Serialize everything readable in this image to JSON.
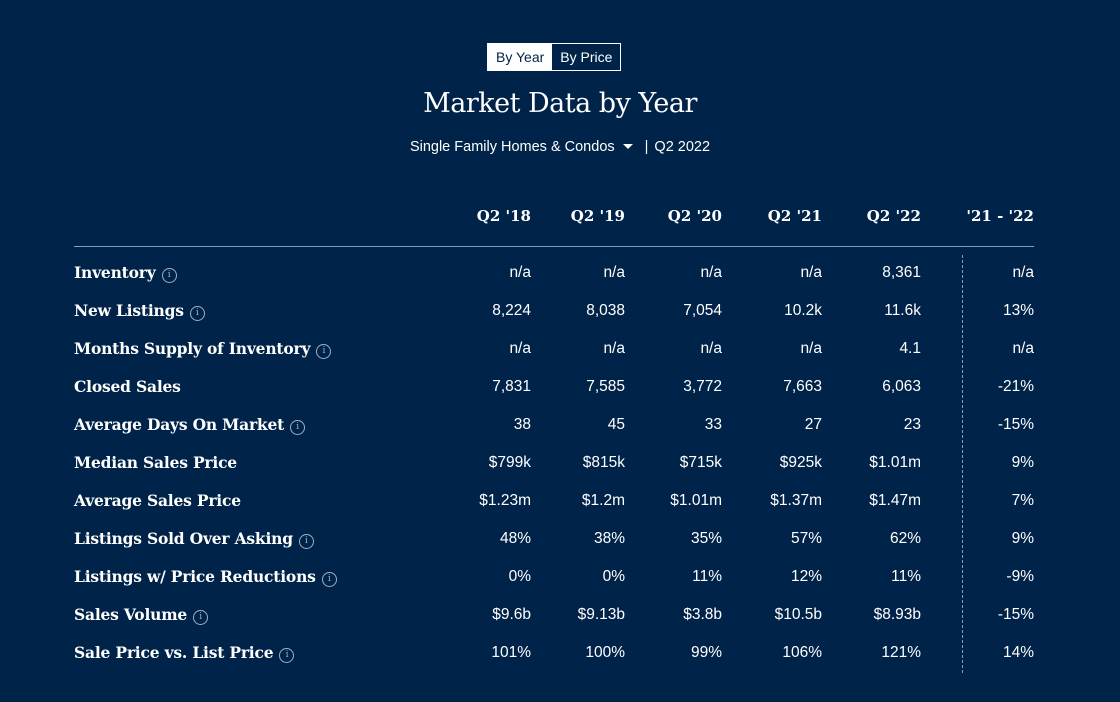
{
  "toggle": {
    "by_year": "By Year",
    "by_price": "By Price"
  },
  "title": "Market Data by Year",
  "filter": {
    "property_type": "Single Family Homes & Condos",
    "separator": "|",
    "period": "Q2 2022"
  },
  "table": {
    "headers": [
      "Q2 '18",
      "Q2 '19",
      "Q2 '20",
      "Q2 '21",
      "Q2 '22",
      "'21 - '22"
    ],
    "rows": [
      {
        "label": "Inventory",
        "info": true,
        "values": [
          "n/a",
          "n/a",
          "n/a",
          "n/a",
          "8,361",
          "n/a"
        ]
      },
      {
        "label": "New Listings",
        "info": true,
        "values": [
          "8,224",
          "8,038",
          "7,054",
          "10.2k",
          "11.6k",
          "13%"
        ]
      },
      {
        "label": "Months Supply of Inventory",
        "info": true,
        "values": [
          "n/a",
          "n/a",
          "n/a",
          "n/a",
          "4.1",
          "n/a"
        ]
      },
      {
        "label": "Closed Sales",
        "info": false,
        "values": [
          "7,831",
          "7,585",
          "3,772",
          "7,663",
          "6,063",
          "-21%"
        ]
      },
      {
        "label": "Average Days On Market",
        "info": true,
        "values": [
          "38",
          "45",
          "33",
          "27",
          "23",
          "-15%"
        ]
      },
      {
        "label": "Median Sales Price",
        "info": false,
        "values": [
          "$799k",
          "$815k",
          "$715k",
          "$925k",
          "$1.01m",
          "9%"
        ]
      },
      {
        "label": "Average Sales Price",
        "info": false,
        "values": [
          "$1.23m",
          "$1.2m",
          "$1.01m",
          "$1.37m",
          "$1.47m",
          "7%"
        ]
      },
      {
        "label": "Listings Sold Over Asking",
        "info": true,
        "values": [
          "48%",
          "38%",
          "35%",
          "57%",
          "62%",
          "9%"
        ]
      },
      {
        "label": "Listings w/ Price Reductions",
        "info": true,
        "values": [
          "0%",
          "0%",
          "11%",
          "12%",
          "11%",
          "-9%"
        ]
      },
      {
        "label": "Sales Volume",
        "info": true,
        "values": [
          "$9.6b",
          "$9.13b",
          "$3.8b",
          "$10.5b",
          "$8.93b",
          "-15%"
        ]
      },
      {
        "label": "Sale Price vs. List Price",
        "info": true,
        "values": [
          "101%",
          "100%",
          "99%",
          "106%",
          "121%",
          "14%"
        ]
      }
    ]
  },
  "info_icon_glyph": "i",
  "colors": {
    "background": "#002349",
    "text": "#ffffff",
    "divider": "#8a9bb3"
  }
}
